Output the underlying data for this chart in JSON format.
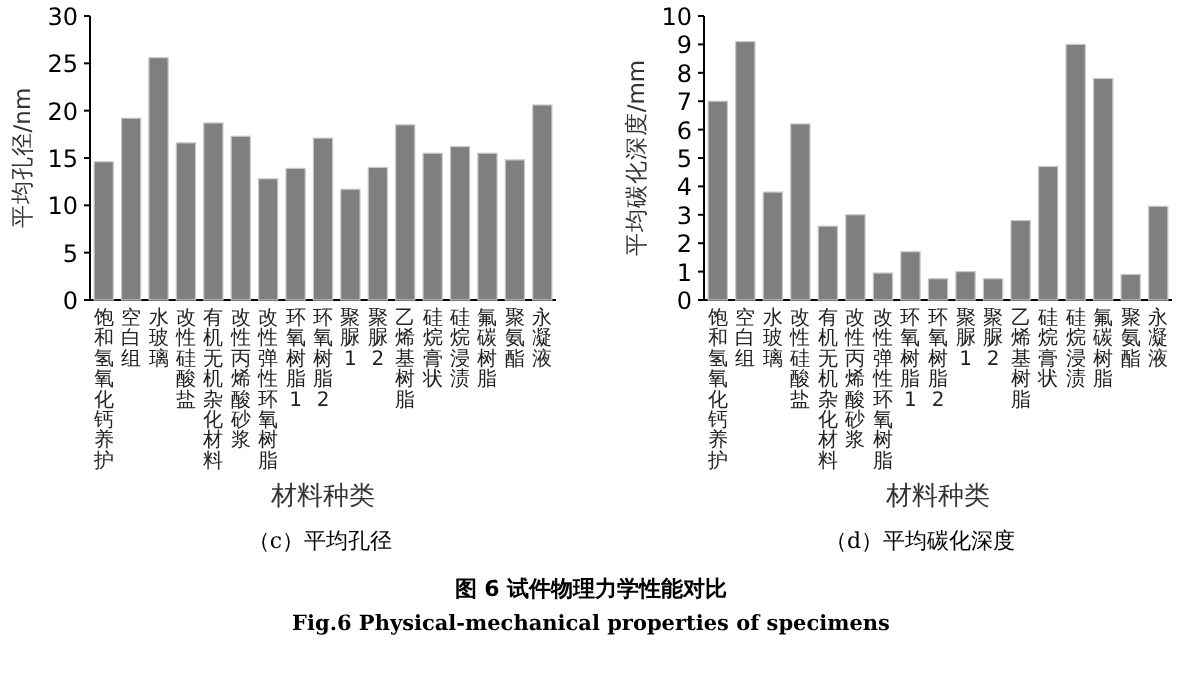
{
  "chart_data": [
    {
      "type": "bar",
      "ylabel": "平均孔径/nm",
      "xlabel": "材料种类",
      "categories": [
        "饱和氢氧化钙养护",
        "空白组",
        "水玻璃",
        "改性硅酸盐",
        "有机无机杂化材料",
        "改性丙烯酸砂浆",
        "改性弹性环氧树脂",
        "环氧树脂1",
        "环氧树脂2",
        "聚脲1",
        "聚脲2",
        "乙烯基树脂",
        "硅烷膏状",
        "硅烷浸渍",
        "氟碳树脂",
        "聚氨酯",
        "永凝液"
      ],
      "values": [
        14.6,
        19.2,
        25.6,
        16.6,
        18.7,
        17.3,
        12.8,
        13.9,
        17.1,
        11.7,
        14.0,
        18.5,
        15.5,
        16.2,
        15.5,
        14.8,
        20.6
      ],
      "color": "#7f7f7f",
      "ylim": [
        0,
        30
      ],
      "yticks": [
        0,
        5,
        10,
        15,
        20,
        25,
        30
      ],
      "annotations": [
        "（c）平均孔径",
        "图 6  试件物理力学性能对比",
        "Fig.6 Physical-mechanical properties of specimens"
      ]
    },
    {
      "type": "bar",
      "ylabel": "平均碳化深度/mm",
      "xlabel": "材料种类",
      "categories": [
        "饱和氢氧化钙养护",
        "空白组",
        "水玻璃",
        "改性硅酸盐",
        "有机无机杂化材料",
        "改性丙烯酸砂浆",
        "改性弹性环氧树脂",
        "环氧树脂1",
        "环氧树脂2",
        "聚脲1",
        "聚脲2",
        "乙烯基树脂",
        "硅烷膏状",
        "硅烷浸渍",
        "氟碳树脂",
        "聚氨酯",
        "永凝液"
      ],
      "values": [
        7.0,
        9.1,
        3.8,
        6.2,
        2.6,
        3.0,
        0.95,
        1.7,
        0.75,
        1.0,
        0.75,
        2.8,
        4.7,
        9.0,
        7.8,
        0.9,
        3.3
      ],
      "color": "#7f7f7f",
      "ylim": [
        0,
        10
      ],
      "yticks": [
        0,
        1,
        2,
        3,
        4,
        5,
        6,
        7,
        8,
        9,
        10
      ],
      "annotations": [
        "（d）平均碳化深度"
      ]
    }
  ]
}
